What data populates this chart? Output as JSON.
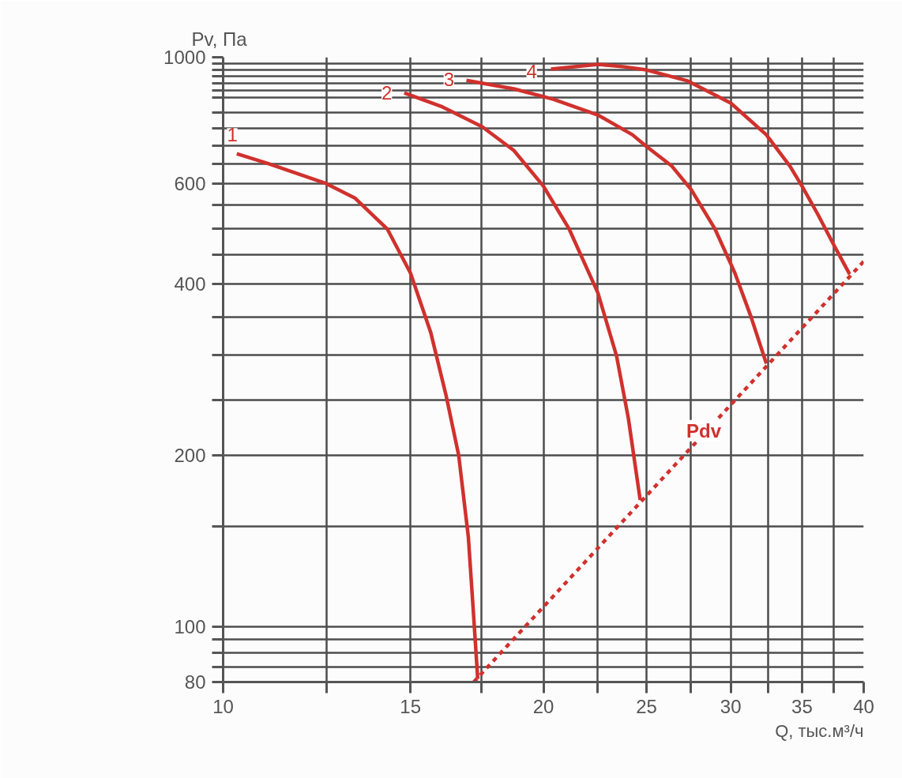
{
  "chart_data": {
    "type": "line",
    "xlabel": "Q, тыс.м³/ч",
    "ylabel": "Pv, Па",
    "log": "xy",
    "grid": true,
    "marker": "none",
    "line_style": "solid",
    "xlim": [
      10,
      40
    ],
    "ylim": [
      80,
      1000
    ],
    "xticks": [
      10,
      {
        "value": 12.5,
        "label": null
      },
      15,
      {
        "value": 17.5,
        "label": null
      },
      20,
      {
        "value": 22.5,
        "label": null
      },
      25,
      {
        "value": 27.5,
        "label": null
      },
      30,
      {
        "value": 32.5,
        "label": null
      },
      35,
      {
        "value": 37.5,
        "label": null
      },
      40
    ],
    "yticks": [
      80,
      {
        "value": 85,
        "label": null
      },
      {
        "value": 90,
        "label": null
      },
      {
        "value": 95,
        "label": null
      },
      100,
      {
        "value": 150,
        "label": null
      },
      200,
      {
        "value": 250,
        "label": null
      },
      {
        "value": 300,
        "label": null
      },
      {
        "value": 350,
        "label": null
      },
      400,
      {
        "value": 450,
        "label": null
      },
      {
        "value": 500,
        "label": null
      },
      {
        "value": 550,
        "label": null
      },
      600,
      {
        "value": 650,
        "label": null
      },
      {
        "value": 700,
        "label": null
      },
      {
        "value": 750,
        "label": null
      },
      {
        "value": 800,
        "label": null
      },
      {
        "value": 850,
        "label": null
      },
      {
        "value": 875,
        "label": null
      },
      {
        "value": 900,
        "label": null
      },
      {
        "value": 925,
        "label": null
      },
      {
        "value": 950,
        "label": null
      },
      {
        "value": 975,
        "label": null
      },
      1000
    ],
    "series": [
      {
        "color": "#d0312d",
        "x": [
          10.3,
          11.04,
          12.5,
          13.3,
          14.27,
          15.0,
          15.67,
          16.2,
          16.65,
          17.0,
          17.2,
          17.35
        ],
        "values": [
          677,
          650,
          600,
          566,
          499,
          418,
          329,
          255,
          200,
          144,
          104,
          81
        ]
      },
      {
        "color": "#d0312d",
        "x": [
          14.8,
          16.08,
          17.52,
          18.76,
          20.0,
          21.15,
          22.5,
          23.43,
          24.04,
          24.66
        ],
        "values": [
          866,
          818,
          755,
          686,
          594,
          499,
          386,
          299,
          232,
          167
        ]
      },
      {
        "color": "#d0312d",
        "x": [
          16.93,
          18.76,
          20.43,
          22.5,
          24.25,
          25.0,
          26.41,
          27.55,
          29.0,
          30.27,
          31.33,
          32.4
        ],
        "values": [
          911,
          880,
          844,
          792,
          731,
          697,
          644,
          585,
          499,
          418,
          351,
          290
        ]
      },
      {
        "color": "#d0312d",
        "x": [
          20.33,
          22.5,
          23.83,
          25.0,
          27.33,
          30.0,
          32.4,
          34.1,
          35.0,
          36.2,
          37.5,
          38.8
        ],
        "values": [
          953,
          972,
          962,
          950,
          909,
          831,
          731,
          644,
          594,
          531,
          468,
          416
        ]
      },
      {
        "color": "#d0312d",
        "line_style": "dashed",
        "x": [
          17.2,
          40
        ],
        "values": [
          80,
          438
        ]
      }
    ],
    "annotations": [
      {
        "text": "1",
        "x": 10.2,
        "y": 731
      },
      {
        "text": "2",
        "x": 14.25,
        "y": 866
      },
      {
        "text": "3",
        "x": 16.3,
        "y": 914
      },
      {
        "text": "4",
        "x": 19.5,
        "y": 944
      },
      {
        "text": "Pdv",
        "x": 28.3,
        "y": 221
      }
    ]
  }
}
